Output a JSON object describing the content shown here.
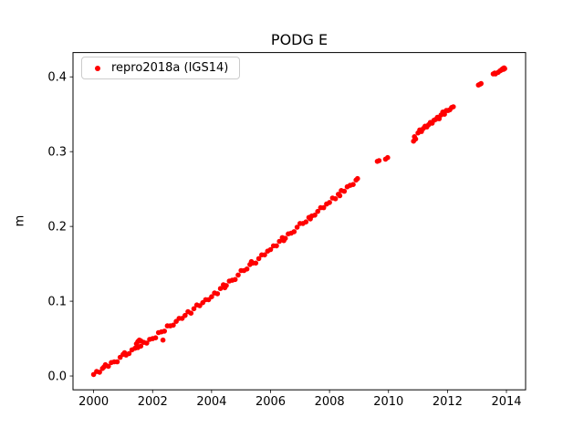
{
  "chart_data": {
    "type": "scatter",
    "title": "PODG E",
    "xlabel": "",
    "ylabel": "m",
    "xlim": [
      1999.3,
      2014.65
    ],
    "ylim": [
      -0.0185,
      0.4325
    ],
    "xticks": [
      2000,
      2002,
      2004,
      2006,
      2008,
      2010,
      2012,
      2014
    ],
    "xtick_labels": [
      "2000",
      "2002",
      "2004",
      "2006",
      "2008",
      "2010",
      "2012",
      "2014"
    ],
    "yticks": [
      0.0,
      0.1,
      0.2,
      0.3,
      0.4
    ],
    "ytick_labels": [
      "0.0",
      "0.1",
      "0.2",
      "0.3",
      "0.4"
    ],
    "grid": false,
    "background_color": "#ffffff",
    "axes_color": "#000000",
    "legend": {
      "position": "upper-left",
      "entries": [
        {
          "label": "repro2018a (IGS14)",
          "color": "#ff0000",
          "marker": "point"
        }
      ]
    },
    "series": [
      {
        "name": "repro2018a (IGS14)",
        "color": "#ff0000",
        "marker": "point",
        "points": [
          [
            2000.0,
            0.002
          ],
          [
            2000.1,
            0.006
          ],
          [
            2000.2,
            0.005
          ],
          [
            2000.3,
            0.01
          ],
          [
            2000.35,
            0.012
          ],
          [
            2000.4,
            0.015
          ],
          [
            2000.5,
            0.013
          ],
          [
            2000.6,
            0.018
          ],
          [
            2000.7,
            0.019
          ],
          [
            2000.8,
            0.019
          ],
          [
            2000.9,
            0.025
          ],
          [
            2001.0,
            0.029
          ],
          [
            2001.05,
            0.031
          ],
          [
            2001.1,
            0.028
          ],
          [
            2001.2,
            0.03
          ],
          [
            2001.3,
            0.035
          ],
          [
            2001.4,
            0.037
          ],
          [
            2001.45,
            0.043
          ],
          [
            2001.5,
            0.046
          ],
          [
            2001.55,
            0.048
          ],
          [
            2001.6,
            0.047
          ],
          [
            2001.5,
            0.038
          ],
          [
            2001.6,
            0.04
          ],
          [
            2001.7,
            0.045
          ],
          [
            2001.8,
            0.044
          ],
          [
            2001.9,
            0.049
          ],
          [
            2002.0,
            0.05
          ],
          [
            2002.1,
            0.051
          ],
          [
            2002.2,
            0.058
          ],
          [
            2002.3,
            0.059
          ],
          [
            2002.35,
            0.048
          ],
          [
            2002.4,
            0.06
          ],
          [
            2002.5,
            0.067
          ],
          [
            2002.6,
            0.067
          ],
          [
            2002.7,
            0.068
          ],
          [
            2002.8,
            0.073
          ],
          [
            2002.9,
            0.077
          ],
          [
            2003.0,
            0.077
          ],
          [
            2003.1,
            0.081
          ],
          [
            2003.2,
            0.086
          ],
          [
            2003.3,
            0.084
          ],
          [
            2003.4,
            0.09
          ],
          [
            2003.5,
            0.095
          ],
          [
            2003.6,
            0.094
          ],
          [
            2003.7,
            0.098
          ],
          [
            2003.8,
            0.102
          ],
          [
            2003.9,
            0.102
          ],
          [
            2004.0,
            0.106
          ],
          [
            2004.1,
            0.111
          ],
          [
            2004.2,
            0.11
          ],
          [
            2004.3,
            0.117
          ],
          [
            2004.4,
            0.122
          ],
          [
            2004.45,
            0.118
          ],
          [
            2004.5,
            0.121
          ],
          [
            2004.6,
            0.127
          ],
          [
            2004.7,
            0.128
          ],
          [
            2004.8,
            0.129
          ],
          [
            2004.9,
            0.135
          ],
          [
            2005.0,
            0.141
          ],
          [
            2005.1,
            0.141
          ],
          [
            2005.2,
            0.143
          ],
          [
            2005.3,
            0.149
          ],
          [
            2005.35,
            0.153
          ],
          [
            2005.4,
            0.151
          ],
          [
            2005.5,
            0.151
          ],
          [
            2005.6,
            0.157
          ],
          [
            2005.7,
            0.162
          ],
          [
            2005.8,
            0.162
          ],
          [
            2005.9,
            0.167
          ],
          [
            2006.0,
            0.169
          ],
          [
            2006.1,
            0.174
          ],
          [
            2006.2,
            0.174
          ],
          [
            2006.3,
            0.18
          ],
          [
            2006.4,
            0.185
          ],
          [
            2006.45,
            0.181
          ],
          [
            2006.5,
            0.184
          ],
          [
            2006.6,
            0.19
          ],
          [
            2006.7,
            0.191
          ],
          [
            2006.8,
            0.193
          ],
          [
            2006.9,
            0.199
          ],
          [
            2007.0,
            0.204
          ],
          [
            2007.1,
            0.204
          ],
          [
            2007.2,
            0.206
          ],
          [
            2007.3,
            0.212
          ],
          [
            2007.35,
            0.21
          ],
          [
            2007.4,
            0.214
          ],
          [
            2007.5,
            0.215
          ],
          [
            2007.6,
            0.22
          ],
          [
            2007.7,
            0.225
          ],
          [
            2007.8,
            0.225
          ],
          [
            2007.9,
            0.23
          ],
          [
            2008.0,
            0.232
          ],
          [
            2008.1,
            0.238
          ],
          [
            2008.2,
            0.237
          ],
          [
            2008.3,
            0.243
          ],
          [
            2008.35,
            0.241
          ],
          [
            2008.4,
            0.248
          ],
          [
            2008.5,
            0.247
          ],
          [
            2008.6,
            0.253
          ],
          [
            2008.7,
            0.255
          ],
          [
            2008.8,
            0.256
          ],
          [
            2008.9,
            0.262
          ],
          [
            2008.95,
            0.264
          ],
          [
            2009.62,
            0.287
          ],
          [
            2009.68,
            0.288
          ],
          [
            2009.9,
            0.29
          ],
          [
            2009.97,
            0.292
          ],
          [
            2010.85,
            0.314
          ],
          [
            2010.88,
            0.32
          ],
          [
            2010.92,
            0.317
          ],
          [
            2011.0,
            0.325
          ],
          [
            2011.06,
            0.329
          ],
          [
            2011.12,
            0.327
          ],
          [
            2011.18,
            0.331
          ],
          [
            2011.24,
            0.334
          ],
          [
            2011.3,
            0.333
          ],
          [
            2011.36,
            0.336
          ],
          [
            2011.42,
            0.339
          ],
          [
            2011.48,
            0.338
          ],
          [
            2011.54,
            0.342
          ],
          [
            2011.6,
            0.343
          ],
          [
            2011.66,
            0.346
          ],
          [
            2011.72,
            0.344
          ],
          [
            2011.78,
            0.349
          ],
          [
            2011.84,
            0.353
          ],
          [
            2011.9,
            0.35
          ],
          [
            2011.96,
            0.355
          ],
          [
            2012.02,
            0.355
          ],
          [
            2012.08,
            0.356
          ],
          [
            2012.14,
            0.359
          ],
          [
            2012.2,
            0.36
          ],
          [
            2013.05,
            0.389
          ],
          [
            2013.1,
            0.39
          ],
          [
            2013.14,
            0.391
          ],
          [
            2013.55,
            0.404
          ],
          [
            2013.6,
            0.405
          ],
          [
            2013.63,
            0.404
          ],
          [
            2013.72,
            0.406
          ],
          [
            2013.78,
            0.408
          ],
          [
            2013.82,
            0.409
          ],
          [
            2013.85,
            0.41
          ],
          [
            2013.88,
            0.411
          ],
          [
            2013.9,
            0.41
          ],
          [
            2013.92,
            0.412
          ],
          [
            2013.94,
            0.411
          ]
        ]
      }
    ]
  }
}
